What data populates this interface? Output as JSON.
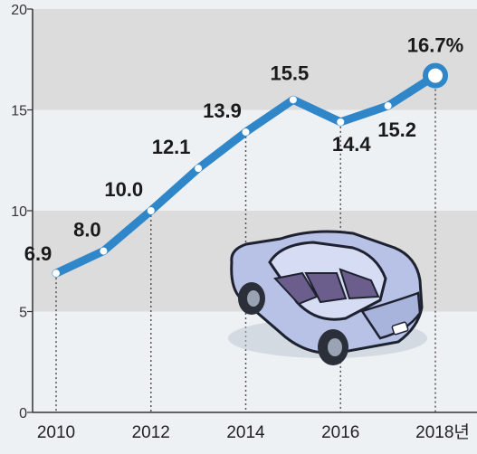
{
  "chart_data": {
    "type": "line",
    "x": [
      2010,
      2011,
      2012,
      2013,
      2014,
      2015,
      2016,
      2017,
      2018
    ],
    "values": [
      6.9,
      8.0,
      10.0,
      12.1,
      13.9,
      15.5,
      14.4,
      15.2,
      16.7
    ],
    "data_labels": [
      "6.9",
      "8.0",
      "10.0",
      "12.1",
      "13.9",
      "15.5",
      "14.4",
      "15.2",
      "16.7%"
    ],
    "x_tick_labels": [
      "2010",
      "2012",
      "2014",
      "2016",
      "2018년"
    ],
    "x_tick_values": [
      2010,
      2012,
      2014,
      2016,
      2018
    ],
    "y_ticks": [
      0,
      5,
      10,
      15,
      20
    ],
    "ylim": [
      0,
      20
    ],
    "xlim": [
      2010,
      2018
    ],
    "grid": true,
    "line_color": "#2f86c8",
    "band_color": "#dcdcdc",
    "icon": "car-icon"
  }
}
